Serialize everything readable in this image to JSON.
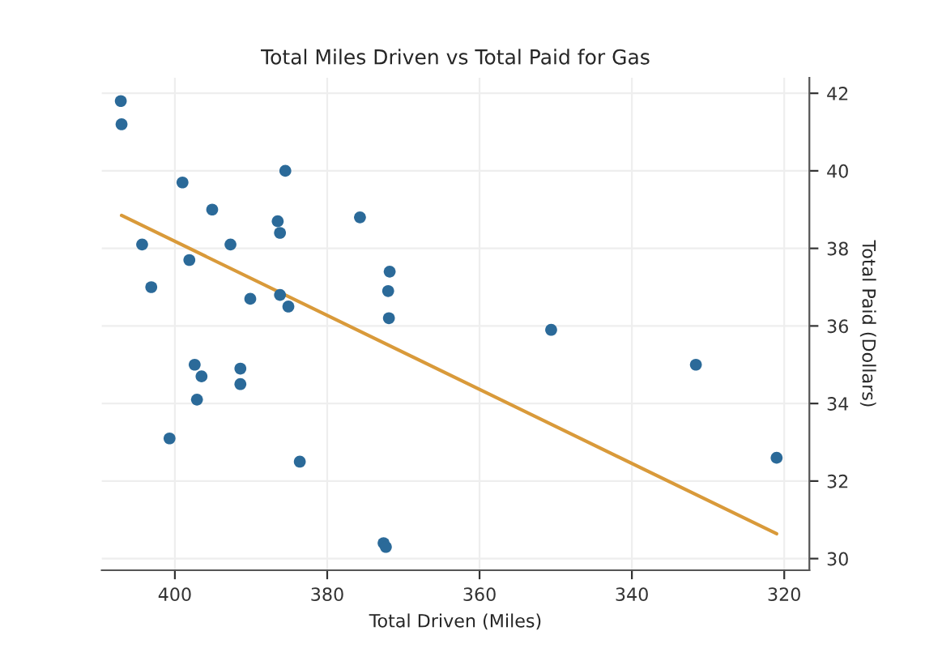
{
  "chart_data": {
    "type": "scatter",
    "title": "Total Miles Driven vs Total Paid for Gas",
    "xlabel": "Total Driven (Miles)",
    "ylabel": "Total Paid (Dollars)",
    "xlim": [
      409.6,
      316.7
    ],
    "xticks": [
      400,
      380,
      360,
      340,
      320
    ],
    "ylim": [
      29.7,
      42.4
    ],
    "yticks": [
      30,
      32,
      34,
      36,
      38,
      40,
      42
    ],
    "grid": true,
    "series": [
      {
        "marker": "circle",
        "color": "#2b6a99",
        "x": [
          407.1,
          407.0,
          385.5,
          399.0,
          395.1,
          386.5,
          386.2,
          375.7,
          404.3,
          392.7,
          398.1,
          403.1,
          371.8,
          372.0,
          371.9,
          390.1,
          386.2,
          385.1,
          397.4,
          396.5,
          391.4,
          391.4,
          397.1,
          400.7,
          383.6,
          372.6,
          372.3,
          350.6,
          331.6,
          321.0
        ],
        "values": [
          41.8,
          41.2,
          40.0,
          39.7,
          39.0,
          38.7,
          38.4,
          38.8,
          38.1,
          38.1,
          37.7,
          37.0,
          37.4,
          36.9,
          36.2,
          36.7,
          36.8,
          36.5,
          35.0,
          34.7,
          34.9,
          34.5,
          34.1,
          33.1,
          32.5,
          30.4,
          30.3,
          35.9,
          35.0,
          32.6
        ]
      },
      {
        "type": "line",
        "color": "#d99a3a",
        "x": [
          407.0,
          321.0
        ],
        "values": [
          38.85,
          30.64
        ]
      }
    ]
  }
}
